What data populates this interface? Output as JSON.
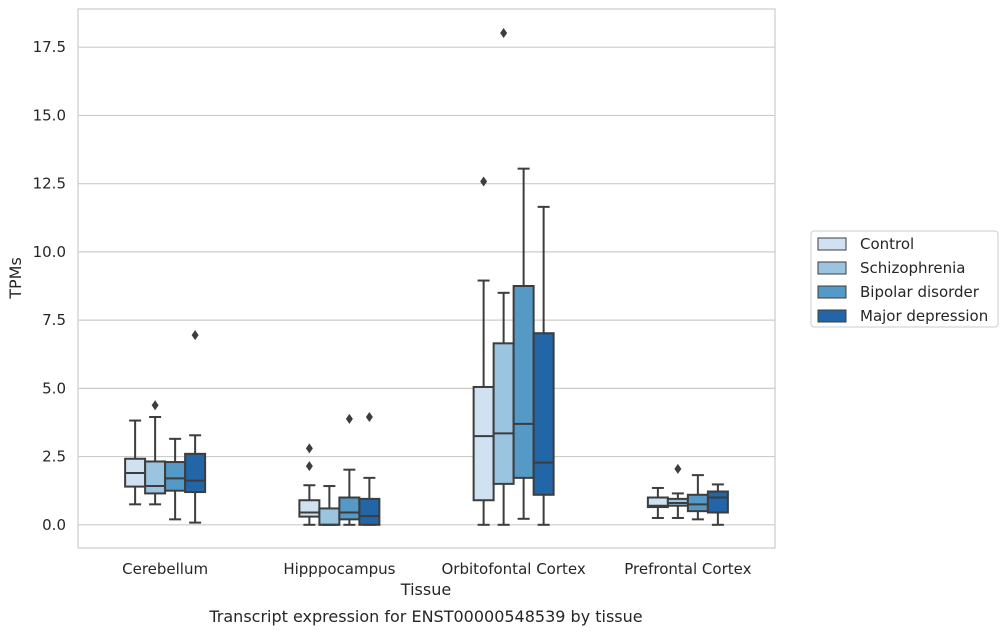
{
  "caption": "Transcript expression for ENST00000548539 by tissue",
  "chart_data": {
    "type": "box",
    "xlabel": "Tissue",
    "ylabel": "TPMs",
    "ylim": [
      -0.85,
      18.9
    ],
    "yticks": [
      "0.0",
      "2.5",
      "5.0",
      "7.5",
      "10.0",
      "12.5",
      "15.0",
      "17.5"
    ],
    "grid": "horizontal",
    "legend_position": "right",
    "categories": [
      "Cerebellum",
      "Hipppocampus",
      "Orbitofontal Cortex",
      "Prefrontal Cortex"
    ],
    "series": [
      {
        "name": "Control",
        "color": "#d0e1f2",
        "boxes": [
          {
            "whislo": 0.75,
            "q1": 1.4,
            "med": 1.9,
            "q3": 2.42,
            "whishi": 3.82,
            "fliers": []
          },
          {
            "whislo": 0.0,
            "q1": 0.3,
            "med": 0.45,
            "q3": 0.9,
            "whishi": 1.45,
            "fliers": [
              2.15,
              2.8
            ]
          },
          {
            "whislo": 0.0,
            "q1": 0.9,
            "med": 3.25,
            "q3": 5.05,
            "whishi": 8.95,
            "fliers": [
              12.58
            ]
          },
          {
            "whislo": 0.25,
            "q1": 0.65,
            "med": 0.7,
            "q3": 1.0,
            "whishi": 1.35,
            "fliers": []
          }
        ]
      },
      {
        "name": "Schizophrenia",
        "color": "#9ac4e0",
        "boxes": [
          {
            "whislo": 0.75,
            "q1": 1.15,
            "med": 1.42,
            "q3": 2.32,
            "whishi": 3.95,
            "fliers": [
              4.38
            ]
          },
          {
            "whislo": 0.0,
            "q1": 0.0,
            "med": 0.0,
            "q3": 0.6,
            "whishi": 1.42,
            "fliers": []
          },
          {
            "whislo": 0.0,
            "q1": 1.5,
            "med": 3.35,
            "q3": 6.65,
            "whishi": 8.5,
            "fliers": [
              18.02
            ]
          },
          {
            "whislo": 0.25,
            "q1": 0.7,
            "med": 0.8,
            "q3": 0.95,
            "whishi": 1.15,
            "fliers": [
              2.05
            ]
          }
        ]
      },
      {
        "name": "Bipolar disorder",
        "color": "#5599c6",
        "boxes": [
          {
            "whislo": 0.2,
            "q1": 1.25,
            "med": 1.7,
            "q3": 2.3,
            "whishi": 3.15,
            "fliers": []
          },
          {
            "whislo": 0.0,
            "q1": 0.2,
            "med": 0.45,
            "q3": 1.0,
            "whishi": 2.02,
            "fliers": [
              3.88
            ]
          },
          {
            "whislo": 0.22,
            "q1": 1.72,
            "med": 3.7,
            "q3": 8.75,
            "whishi": 13.05,
            "fliers": []
          },
          {
            "whislo": 0.2,
            "q1": 0.5,
            "med": 0.75,
            "q3": 1.1,
            "whishi": 1.82,
            "fliers": []
          }
        ]
      },
      {
        "name": "Major depression",
        "color": "#2266a7",
        "boxes": [
          {
            "whislo": 0.08,
            "q1": 1.2,
            "med": 1.62,
            "q3": 2.6,
            "whishi": 3.28,
            "fliers": [
              6.95
            ]
          },
          {
            "whislo": 0.0,
            "q1": 0.0,
            "med": 0.32,
            "q3": 0.95,
            "whishi": 1.72,
            "fliers": [
              3.95
            ]
          },
          {
            "whislo": 0.0,
            "q1": 1.1,
            "med": 2.28,
            "q3": 7.02,
            "whishi": 11.65,
            "fliers": []
          },
          {
            "whislo": 0.0,
            "q1": 0.45,
            "med": 1.0,
            "q3": 1.22,
            "whishi": 1.48,
            "fliers": []
          }
        ]
      }
    ]
  }
}
